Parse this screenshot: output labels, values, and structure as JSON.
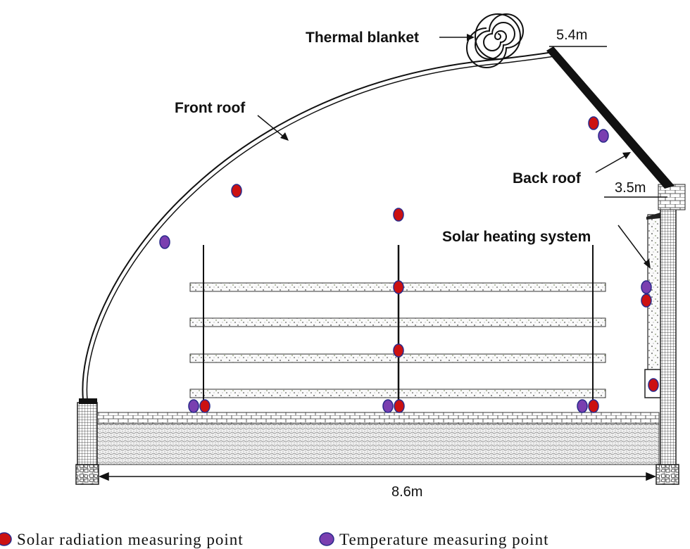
{
  "labels": {
    "thermal_blanket": "Thermal blanket",
    "front_roof": "Front roof",
    "back_roof": "Back roof",
    "solar_heating_system": "Solar heating system"
  },
  "dimensions": {
    "ridge_height": "5.4m",
    "back_wall_height": "3.5m",
    "span": "8.6m"
  },
  "legend": {
    "solar": "Solar radiation measuring point",
    "temperature": "Temperature measuring point"
  },
  "colors": {
    "solar": "#cc1111",
    "temperature": "#7a3fb0",
    "marker_stroke": "#2a2a8a"
  }
}
